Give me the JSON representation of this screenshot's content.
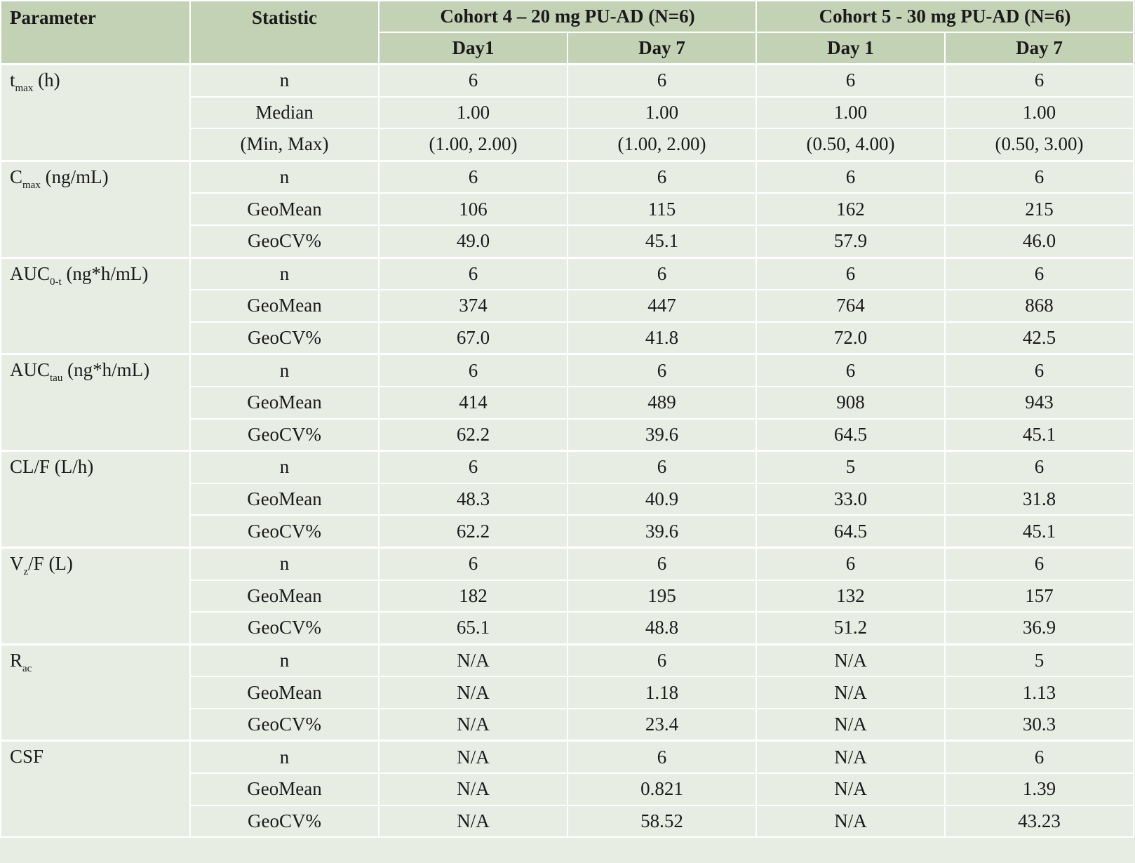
{
  "header": {
    "parameter": "Parameter",
    "statistic": "Statistic",
    "cohort4": "Cohort 4 – 20 mg PU-AD (N=6)",
    "cohort5": "Cohort 5 - 30 mg PU-AD (N=6)",
    "c4_day1": "Day1",
    "c4_day7": "Day 7",
    "c5_day1": "Day 1",
    "c5_day7": "Day 7"
  },
  "groups": [
    {
      "param": {
        "main": "t",
        "sub": "max",
        "rest": " (h)"
      },
      "rows": [
        {
          "stat": "n",
          "values": [
            "6",
            "6",
            "6",
            "6"
          ]
        },
        {
          "stat": "Median",
          "values": [
            "1.00",
            "1.00",
            "1.00",
            "1.00"
          ]
        },
        {
          "stat": "(Min, Max)",
          "values": [
            "(1.00, 2.00)",
            "(1.00, 2.00)",
            "(0.50, 4.00)",
            "(0.50, 3.00)"
          ]
        }
      ]
    },
    {
      "param": {
        "main": "C",
        "sub": "max",
        "rest": " (ng/mL)"
      },
      "rows": [
        {
          "stat": "n",
          "values": [
            "6",
            "6",
            "6",
            "6"
          ]
        },
        {
          "stat": "GeoMean",
          "values": [
            "106",
            "115",
            "162",
            "215"
          ]
        },
        {
          "stat": "GeoCV%",
          "values": [
            "49.0",
            "45.1",
            "57.9",
            "46.0"
          ]
        }
      ]
    },
    {
      "param": {
        "main": "AUC",
        "sub": "0-t",
        "rest": " (ng*h/mL)"
      },
      "rows": [
        {
          "stat": "n",
          "values": [
            "6",
            "6",
            "6",
            "6"
          ]
        },
        {
          "stat": "GeoMean",
          "values": [
            "374",
            "447",
            "764",
            "868"
          ]
        },
        {
          "stat": "GeoCV%",
          "values": [
            "67.0",
            "41.8",
            "72.0",
            "42.5"
          ]
        }
      ]
    },
    {
      "param": {
        "main": "AUC",
        "sub": "tau",
        "rest": " (ng*h/mL)"
      },
      "rows": [
        {
          "stat": "n",
          "values": [
            "6",
            "6",
            "6",
            "6"
          ]
        },
        {
          "stat": "GeoMean",
          "values": [
            "414",
            "489",
            "908",
            "943"
          ]
        },
        {
          "stat": "GeoCV%",
          "values": [
            "62.2",
            "39.6",
            "64.5",
            "45.1"
          ]
        }
      ]
    },
    {
      "param": {
        "main": "CL/F (L/h)",
        "sub": "",
        "rest": ""
      },
      "rows": [
        {
          "stat": "n",
          "values": [
            "6",
            "6",
            "5",
            "6"
          ]
        },
        {
          "stat": "GeoMean",
          "values": [
            "48.3",
            "40.9",
            "33.0",
            "31.8"
          ]
        },
        {
          "stat": "GeoCV%",
          "values": [
            "62.2",
            "39.6",
            "64.5",
            "45.1"
          ]
        }
      ]
    },
    {
      "param": {
        "main": "V",
        "sub": "z",
        "rest": "/F (L)"
      },
      "rows": [
        {
          "stat": "n",
          "values": [
            "6",
            "6",
            "6",
            "6"
          ]
        },
        {
          "stat": "GeoMean",
          "values": [
            "182",
            "195",
            "132",
            "157"
          ]
        },
        {
          "stat": "GeoCV%",
          "values": [
            "65.1",
            "48.8",
            "51.2",
            "36.9"
          ]
        }
      ]
    },
    {
      "param": {
        "main": "R",
        "sub": "ac",
        "rest": ""
      },
      "rows": [
        {
          "stat": "n",
          "values": [
            "N/A",
            "6",
            "N/A",
            "5"
          ]
        },
        {
          "stat": "GeoMean",
          "values": [
            "N/A",
            "1.18",
            "N/A",
            "1.13"
          ]
        },
        {
          "stat": "GeoCV%",
          "values": [
            "N/A",
            "23.4",
            "N/A",
            "30.3"
          ]
        }
      ]
    },
    {
      "param": {
        "main": "CSF",
        "sub": "",
        "rest": ""
      },
      "rows": [
        {
          "stat": "n",
          "values": [
            "N/A",
            "6",
            "N/A",
            "6"
          ]
        },
        {
          "stat": "GeoMean",
          "values": [
            "N/A",
            "0.821",
            "N/A",
            "1.39"
          ]
        },
        {
          "stat": "GeoCV%",
          "values": [
            "N/A",
            "58.52",
            "N/A",
            "43.23"
          ]
        }
      ]
    }
  ]
}
